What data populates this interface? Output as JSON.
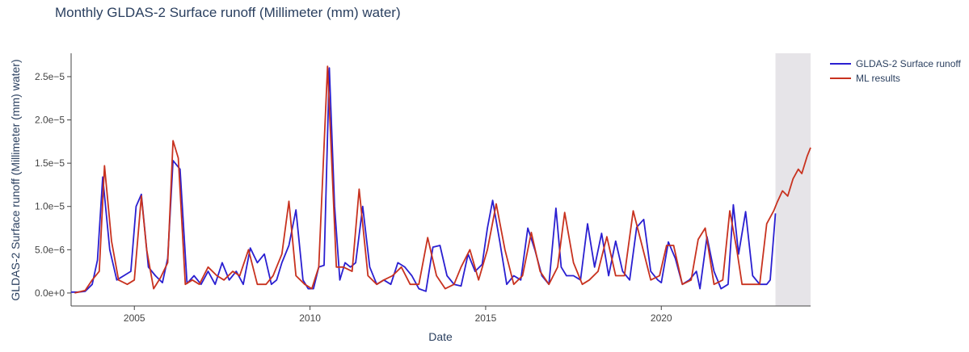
{
  "chart_data": {
    "type": "line",
    "title": "Monthly GLDAS-2 Surface runoff (Millimeter (mm) water)",
    "xlabel": "Date",
    "ylabel": "GLDAS-2 Surface runoff (Millimeter (mm) water)",
    "xlim": [
      2003.2,
      2024.25
    ],
    "ylim": [
      -1.5e-06,
      2.77e-05
    ],
    "grid": false,
    "legend_position": "top-right",
    "x_ticks": [
      2005,
      2010,
      2015,
      2020
    ],
    "x_tick_labels": [
      "2005",
      "2010",
      "2015",
      "2020"
    ],
    "y_ticks": [
      0,
      5e-06,
      1e-05,
      1.5e-05,
      2e-05,
      2.5e-05
    ],
    "y_tick_labels": [
      "0.0e+0",
      "5.0e−6",
      "1.0e−5",
      "1.5e−5",
      "2.0e−5",
      "2.5e−5"
    ],
    "forecast_region": [
      2023.25,
      2024.25
    ],
    "forecast_color": "#e6e4e8",
    "series": [
      {
        "name": "GLDAS-2 Surface runoff",
        "color": "#2a1fd1",
        "x": [
          2003.2,
          2003.4,
          2003.6,
          2003.8,
          2003.95,
          2004.1,
          2004.3,
          2004.5,
          2004.7,
          2004.9,
          2005.05,
          2005.2,
          2005.4,
          2005.6,
          2005.8,
          2005.95,
          2006.1,
          2006.3,
          2006.5,
          2006.7,
          2006.9,
          2007.1,
          2007.3,
          2007.5,
          2007.7,
          2007.9,
          2008.1,
          2008.3,
          2008.5,
          2008.7,
          2008.9,
          2009.05,
          2009.2,
          2009.4,
          2009.6,
          2009.8,
          2009.95,
          2010.1,
          2010.25,
          2010.4,
          2010.55,
          2010.7,
          2010.85,
          2011.0,
          2011.15,
          2011.3,
          2011.5,
          2011.7,
          2011.9,
          2012.1,
          2012.3,
          2012.5,
          2012.7,
          2012.9,
          2013.1,
          2013.3,
          2013.5,
          2013.7,
          2013.9,
          2014.1,
          2014.3,
          2014.5,
          2014.7,
          2014.9,
          2015.05,
          2015.2,
          2015.4,
          2015.6,
          2015.8,
          2016.0,
          2016.2,
          2016.4,
          2016.6,
          2016.8,
          2017.0,
          2017.15,
          2017.3,
          2017.5,
          2017.7,
          2017.9,
          2018.1,
          2018.3,
          2018.5,
          2018.7,
          2018.9,
          2019.1,
          2019.3,
          2019.5,
          2019.7,
          2019.9,
          2020.0,
          2020.2,
          2020.4,
          2020.6,
          2020.8,
          2021.0,
          2021.1,
          2021.3,
          2021.5,
          2021.7,
          2021.9,
          2022.05,
          2022.2,
          2022.4,
          2022.6,
          2022.8,
          2023.0,
          2023.1,
          2023.25
        ],
        "y": [
          1e-07,
          1e-07,
          2e-07,
          1e-06,
          3.8e-06,
          1.34e-05,
          5e-06,
          1.5e-06,
          2e-06,
          2.5e-06,
          1e-05,
          1.14e-05,
          3e-06,
          2e-06,
          1.2e-06,
          4e-06,
          1.53e-05,
          1.43e-05,
          1.1e-06,
          2e-06,
          1e-06,
          2.5e-06,
          1e-06,
          3.5e-06,
          1.5e-06,
          2.5e-06,
          1e-06,
          5.2e-06,
          3.5e-06,
          4.5e-06,
          1e-06,
          1.5e-06,
          3.5e-06,
          5.5e-06,
          9.6e-06,
          1.5e-06,
          5e-07,
          5e-07,
          3e-06,
          3.2e-06,
          2.6e-05,
          1e-05,
          1.5e-06,
          3.5e-06,
          3e-06,
          3.5e-06,
          1e-05,
          3e-06,
          1e-06,
          1.5e-06,
          1e-06,
          3.5e-06,
          3e-06,
          2e-06,
          5e-07,
          2e-07,
          5.3e-06,
          5.5e-06,
          2e-06,
          1e-06,
          8e-07,
          4.5e-06,
          2.5e-06,
          3.3e-06,
          7.5e-06,
          1.07e-05,
          6e-06,
          1e-06,
          2e-06,
          1.5e-06,
          7.5e-06,
          5e-06,
          2e-06,
          1e-06,
          9.8e-06,
          3e-06,
          2e-06,
          2e-06,
          1.5e-06,
          8e-06,
          3e-06,
          6.9e-06,
          2e-06,
          6e-06,
          2.5e-06,
          1.5e-06,
          7.6e-06,
          8.5e-06,
          2.5e-06,
          1.5e-06,
          1.2e-06,
          5.9e-06,
          4e-06,
          1e-06,
          1.5e-06,
          2.5e-06,
          5e-07,
          6.5e-06,
          2.5e-06,
          5e-07,
          1e-06,
          1.02e-05,
          4.5e-06,
          9.4e-06,
          2e-06,
          1e-06,
          1e-06,
          1.5e-06,
          9.2e-06
        ]
      },
      {
        "name": "ML results",
        "color": "#c8321f",
        "x": [
          2003.3,
          2003.6,
          2003.8,
          2004.0,
          2004.15,
          2004.35,
          2004.55,
          2004.8,
          2005.0,
          2005.2,
          2005.35,
          2005.55,
          2005.75,
          2005.95,
          2006.1,
          2006.25,
          2006.45,
          2006.65,
          2006.85,
          2007.1,
          2007.35,
          2007.55,
          2007.8,
          2008.0,
          2008.25,
          2008.5,
          2008.75,
          2008.95,
          2009.2,
          2009.4,
          2009.6,
          2009.85,
          2010.05,
          2010.25,
          2010.5,
          2010.75,
          2010.95,
          2011.2,
          2011.4,
          2011.65,
          2011.9,
          2012.1,
          2012.35,
          2012.6,
          2012.85,
          2013.1,
          2013.35,
          2013.6,
          2013.85,
          2014.1,
          2014.3,
          2014.55,
          2014.8,
          2015.05,
          2015.3,
          2015.55,
          2015.8,
          2016.05,
          2016.3,
          2016.55,
          2016.8,
          2017.05,
          2017.25,
          2017.5,
          2017.75,
          2017.95,
          2018.2,
          2018.45,
          2018.7,
          2018.95,
          2019.2,
          2019.45,
          2019.7,
          2019.95,
          2020.15,
          2020.35,
          2020.6,
          2020.85,
          2021.05,
          2021.25,
          2021.5,
          2021.75,
          2021.95,
          2022.15,
          2022.3,
          2022.55,
          2022.8,
          2023.0,
          2023.2,
          2023.3,
          2023.45,
          2023.6,
          2023.75,
          2023.9,
          2024.0,
          2024.15,
          2024.25
        ],
        "y": [
          0,
          3e-07,
          1.5e-06,
          2.5e-06,
          1.47e-05,
          6e-06,
          1.5e-06,
          1e-06,
          1.5e-06,
          1.12e-05,
          5e-06,
          5e-07,
          1.8e-06,
          3.5e-06,
          1.76e-05,
          1.56e-05,
          1e-06,
          1.5e-06,
          1e-06,
          3e-06,
          2e-06,
          1.5e-06,
          2.5e-06,
          2e-06,
          5e-06,
          1e-06,
          1e-06,
          2e-06,
          4.5e-06,
          1.06e-05,
          2e-06,
          1e-06,
          5e-07,
          3e-06,
          2.62e-05,
          3e-06,
          3e-06,
          2.5e-06,
          1.2e-05,
          2e-06,
          1e-06,
          1.5e-06,
          2e-06,
          3e-06,
          1e-06,
          1e-06,
          6.4e-06,
          2e-06,
          5e-07,
          1e-06,
          3e-06,
          5e-06,
          1.5e-06,
          5e-06,
          1.03e-05,
          5e-06,
          1e-06,
          2e-06,
          7e-06,
          2.5e-06,
          1e-06,
          3e-06,
          9.3e-06,
          3.5e-06,
          1e-06,
          1.5e-06,
          2.5e-06,
          6.5e-06,
          2e-06,
          2e-06,
          9.5e-06,
          5.5e-06,
          1.5e-06,
          2e-06,
          5.5e-06,
          5.5e-06,
          1e-06,
          1.5e-06,
          6.2e-06,
          7.5e-06,
          1e-06,
          1.5e-06,
          9.5e-06,
          5e-06,
          1e-06,
          1e-06,
          1e-06,
          8e-06,
          9.5e-06,
          1.05e-05,
          1.18e-05,
          1.12e-05,
          1.32e-05,
          1.43e-05,
          1.38e-05,
          1.58e-05,
          1.68e-05
        ]
      }
    ]
  }
}
